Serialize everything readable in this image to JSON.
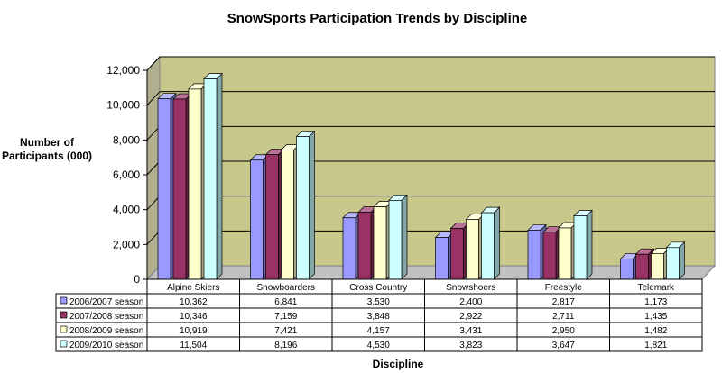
{
  "chart_data": {
    "type": "bar",
    "title": "SnowSports Participation Trends by Discipline",
    "ylabel": [
      "Number of",
      "Participants (000)"
    ],
    "xlabel": "Discipline",
    "ylim": [
      0,
      12000
    ],
    "yticks": [
      "0",
      "2,000",
      "4,000",
      "6,000",
      "8,000",
      "10,000",
      "12,000"
    ],
    "grid": true,
    "legend": "data-table",
    "categories": [
      "Alpine Skiers",
      "Snowboarders",
      "Cross Country",
      "Snowshoers",
      "Freestyle",
      "Telemark"
    ],
    "series": [
      {
        "name": "2006/2007 season",
        "color": "#9999ff",
        "values": [
          10362,
          6841,
          3530,
          2400,
          2817,
          1173
        ],
        "labels": [
          "10,362",
          "6,841",
          "3,530",
          "2,400",
          "2,817",
          "1,173"
        ]
      },
      {
        "name": "2007/2008 season",
        "color": "#993366",
        "values": [
          10346,
          7159,
          3848,
          2922,
          2711,
          1435
        ],
        "labels": [
          "10,346",
          "7,159",
          "3,848",
          "2,922",
          "2,711",
          "1,435"
        ]
      },
      {
        "name": "2008/2009 season",
        "color": "#ffffcc",
        "values": [
          10919,
          7421,
          4157,
          3431,
          2950,
          1482
        ],
        "labels": [
          "10,919",
          "7,421",
          "4,157",
          "3,431",
          "2,950",
          "1,482"
        ]
      },
      {
        "name": "2009/2010 season",
        "color": "#ccffff",
        "values": [
          11504,
          8196,
          4530,
          3823,
          3647,
          1821
        ],
        "labels": [
          "11,504",
          "8,196",
          "4,530",
          "3,823",
          "3,647",
          "1,821"
        ]
      }
    ],
    "wall_color": "#c8c88c"
  }
}
